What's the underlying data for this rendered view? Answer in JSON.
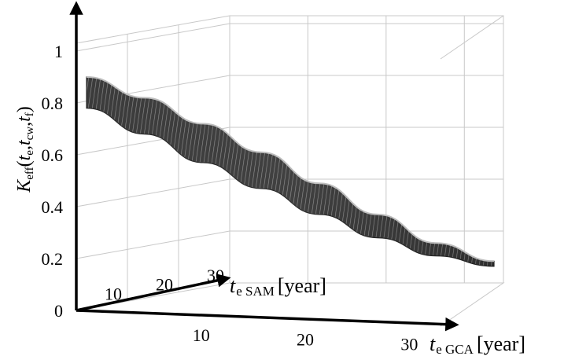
{
  "chart_data": {
    "type": "surface",
    "title": "",
    "zlabel": {
      "main": "K",
      "sub": "eff",
      "args": [
        "t",
        "e",
        "t",
        "cw",
        "t",
        "f"
      ]
    },
    "xlabel": {
      "main": "t",
      "sub": "e GCA",
      "unit": "[year]"
    },
    "ylabel": {
      "main": "t",
      "sub": "e SAM",
      "unit": "[year]"
    },
    "zticks": [
      "0",
      "0.2",
      "0.4",
      "0.6",
      "0.8",
      "1"
    ],
    "xticks": [
      "10",
      "20",
      "30"
    ],
    "yticks": [
      "10",
      "20",
      "30"
    ],
    "xlim": [
      0,
      35
    ],
    "ylim": [
      0,
      30
    ],
    "zlim": [
      0,
      1
    ],
    "grid": true,
    "surface_color": "#2a2a2a",
    "edge_profile": [
      {
        "t_e_GCA": 0,
        "K_upper": 0.9,
        "K_lower": 0.78
      },
      {
        "t_e_GCA": 5,
        "K_upper": 0.82,
        "K_lower": 0.68
      },
      {
        "t_e_GCA": 10,
        "K_upper": 0.72,
        "K_lower": 0.57
      },
      {
        "t_e_GCA": 15,
        "K_upper": 0.61,
        "K_lower": 0.47
      },
      {
        "t_e_GCA": 20,
        "K_upper": 0.49,
        "K_lower": 0.37
      },
      {
        "t_e_GCA": 25,
        "K_upper": 0.37,
        "K_lower": 0.28
      },
      {
        "t_e_GCA": 30,
        "K_upper": 0.26,
        "K_lower": 0.21
      },
      {
        "t_e_GCA": 35,
        "K_upper": 0.19,
        "K_lower": 0.17
      }
    ]
  }
}
